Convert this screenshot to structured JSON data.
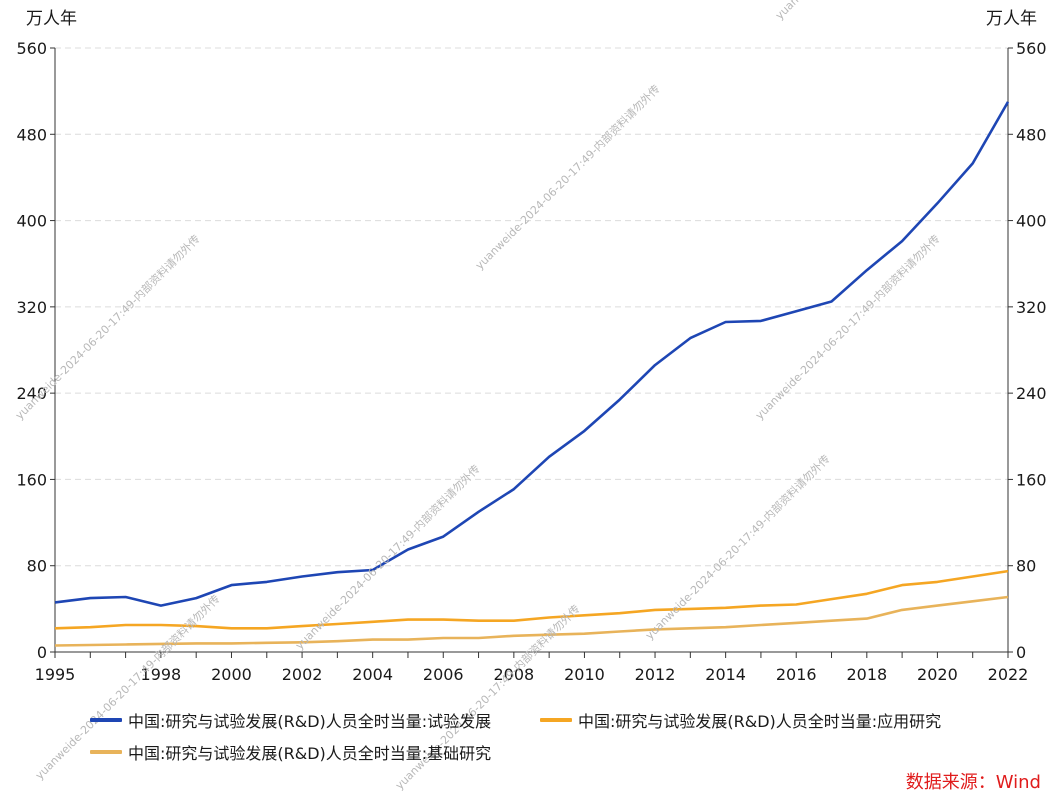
{
  "chart_data": {
    "type": "line",
    "title": "",
    "xlabel": "",
    "ylabel_left": "万人年",
    "ylabel_right": "万人年",
    "ylim": [
      0,
      560
    ],
    "yticks": [
      0,
      80,
      160,
      240,
      320,
      400,
      480,
      560
    ],
    "xlim": [
      1995,
      2022
    ],
    "xticks": [
      1995,
      1998,
      2000,
      2002,
      2004,
      2006,
      2008,
      2010,
      2012,
      2014,
      2016,
      2018,
      2020,
      2022
    ],
    "x": [
      1995,
      1996,
      1997,
      1998,
      1999,
      2000,
      2001,
      2002,
      2003,
      2004,
      2005,
      2006,
      2007,
      2008,
      2009,
      2010,
      2011,
      2012,
      2013,
      2014,
      2015,
      2016,
      2017,
      2018,
      2019,
      2020,
      2021,
      2022
    ],
    "grid": true,
    "legend_position": "bottom",
    "series": [
      {
        "name": "中国:研究与试验发展(R&D)人员全时当量:试验发展",
        "color": "#1e46b4",
        "values": [
          46,
          50,
          51,
          43,
          50,
          62,
          65,
          70,
          74,
          76,
          95,
          107,
          130,
          151,
          181,
          205,
          234,
          266,
          291,
          306,
          307,
          316,
          325,
          354,
          381,
          416,
          453,
          510
        ]
      },
      {
        "name": "中国:研究与试验发展(R&D)人员全时当量:应用研究",
        "color": "#f5a623",
        "values": [
          22,
          23,
          25,
          25,
          24,
          22,
          22,
          24,
          26,
          28,
          30,
          30,
          29,
          29,
          32,
          34,
          36,
          39,
          40,
          41,
          43,
          44,
          49,
          54,
          62,
          65,
          70,
          75
        ]
      },
      {
        "name": "中国:研究与试验发展(R&D)人员全时当量:基础研究",
        "color": "#e8b35a",
        "values": [
          6,
          6.5,
          7,
          7.5,
          8,
          8,
          8.5,
          9,
          10,
          11.5,
          11.5,
          13,
          13,
          15,
          16,
          17,
          19,
          21,
          22,
          23,
          25,
          27,
          29,
          31,
          39,
          43,
          47,
          51
        ]
      }
    ]
  },
  "source_label": "数据来源：Wind",
  "watermark": "yuanweide-2024-06-20-17:49-内部资料请勿外传"
}
